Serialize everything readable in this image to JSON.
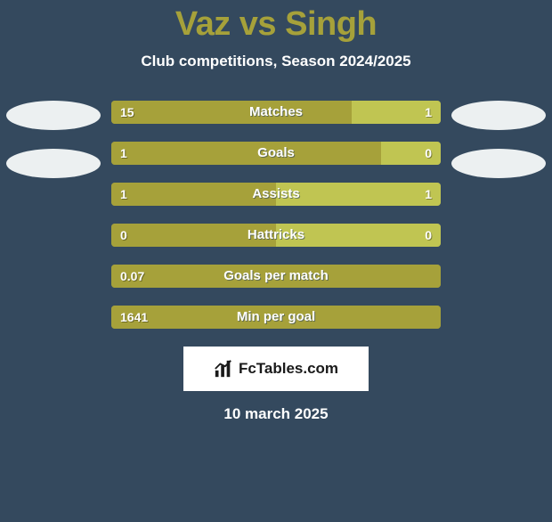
{
  "title_color": "#a6a13a",
  "title": "Vaz vs Singh",
  "subtitle": "Club competitions, Season 2024/2025",
  "avatar_color": "#ecf0f1",
  "colors": {
    "left": "#a6a13a",
    "right": "#c0c552"
  },
  "rows": [
    {
      "label": "Matches",
      "left_val": "15",
      "right_val": "1",
      "left_pct": 73,
      "right_pct": 27,
      "show_right": true
    },
    {
      "label": "Goals",
      "left_val": "1",
      "right_val": "0",
      "left_pct": 82,
      "right_pct": 18,
      "show_right": true
    },
    {
      "label": "Assists",
      "left_val": "1",
      "right_val": "1",
      "left_pct": 50,
      "right_pct": 50,
      "show_right": true
    },
    {
      "label": "Hattricks",
      "left_val": "0",
      "right_val": "0",
      "left_pct": 50,
      "right_pct": 50,
      "show_right": true
    },
    {
      "label": "Goals per match",
      "left_val": "0.07",
      "right_val": "",
      "left_pct": 100,
      "right_pct": 0,
      "show_right": false
    },
    {
      "label": "Min per goal",
      "left_val": "1641",
      "right_val": "",
      "left_pct": 100,
      "right_pct": 0,
      "show_right": false
    }
  ],
  "brand": "FcTables.com",
  "date": "10 march 2025"
}
